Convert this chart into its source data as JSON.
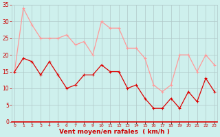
{
  "hours": [
    0,
    1,
    2,
    3,
    4,
    5,
    6,
    7,
    8,
    9,
    10,
    11,
    12,
    13,
    14,
    15,
    16,
    17,
    18,
    19,
    20,
    21,
    22,
    23
  ],
  "wind_avg": [
    15,
    19,
    18,
    14,
    18,
    14,
    10,
    11,
    14,
    14,
    17,
    15,
    15,
    10,
    11,
    7,
    4,
    4,
    7,
    4,
    9,
    6,
    13,
    9
  ],
  "wind_gust": [
    15,
    34,
    29,
    25,
    25,
    25,
    26,
    23,
    24,
    20,
    30,
    28,
    28,
    22,
    22,
    19,
    11,
    9,
    11,
    20,
    20,
    15,
    20,
    17
  ],
  "bg_color": "#cef0ed",
  "grid_color": "#b0c8c8",
  "avg_color": "#dd0000",
  "gust_color": "#ff9999",
  "xlabel": "Vent moyen/en rafales  ( km/h )",
  "xlabel_color": "#cc0000",
  "tick_color": "#cc0000",
  "ylim": [
    0,
    35
  ],
  "yticks": [
    0,
    5,
    10,
    15,
    20,
    25,
    30,
    35
  ],
  "marker_size": 2.5,
  "line_width": 0.9
}
